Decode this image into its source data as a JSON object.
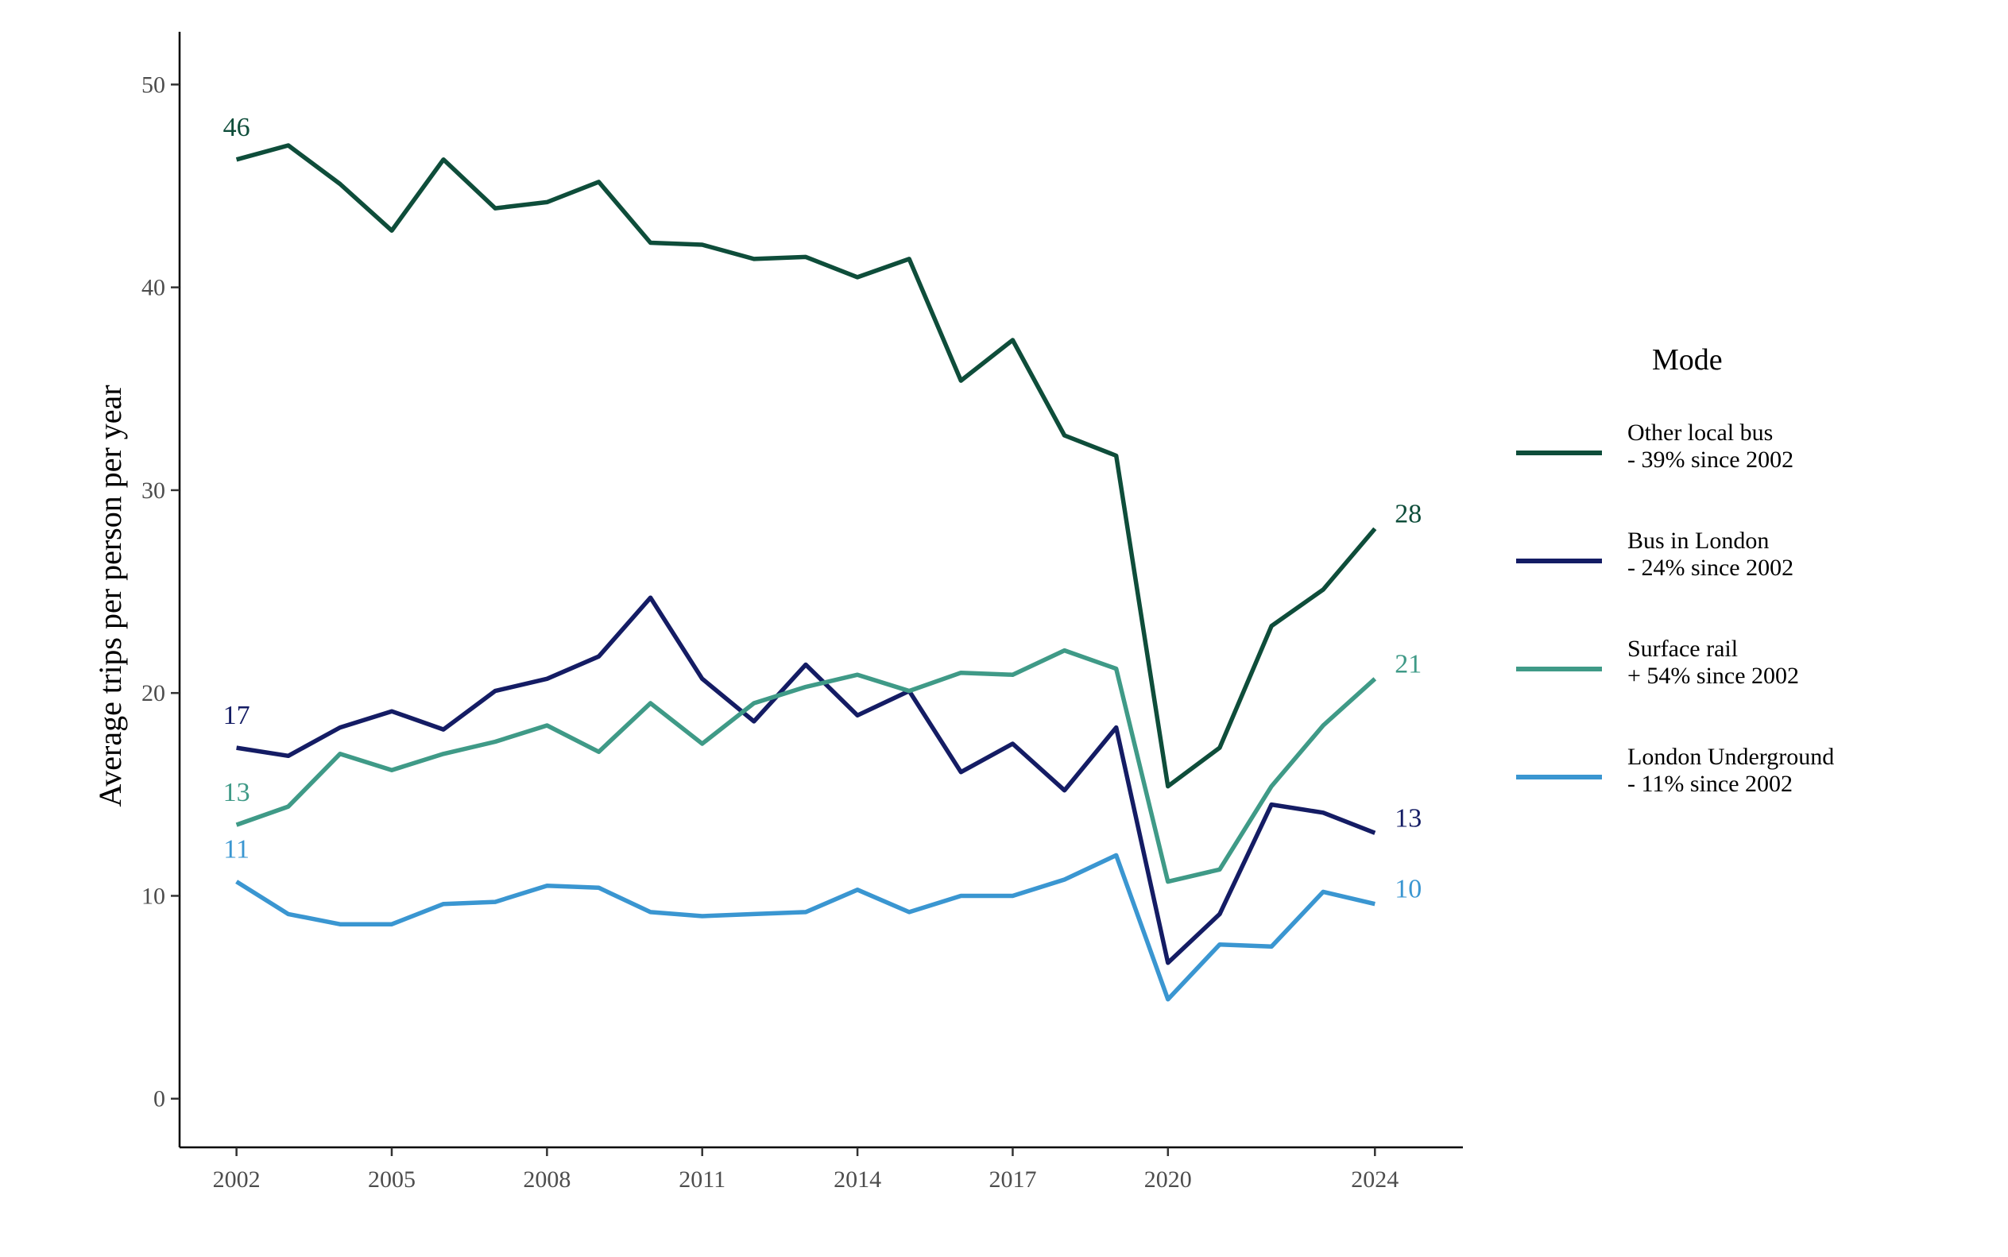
{
  "chart_data": {
    "type": "line",
    "xlabel": "",
    "ylabel": "Average trips per person per year",
    "xlim": [
      2000.9,
      2025.7
    ],
    "ylim": [
      -2.4,
      52.6
    ],
    "x_ticks": [
      "2002",
      "2005",
      "2008",
      "2011",
      "2014",
      "2017",
      "2020",
      "2024"
    ],
    "y_ticks": [
      "0",
      "10",
      "20",
      "30",
      "40",
      "50"
    ],
    "grid": false,
    "legend": {
      "title": "Mode",
      "placement": "right"
    },
    "x": [
      2002,
      2003,
      2004,
      2005,
      2006,
      2007,
      2008,
      2009,
      2010,
      2011,
      2012,
      2013,
      2014,
      2015,
      2016,
      2017,
      2018,
      2019,
      2020,
      2021,
      2022,
      2023,
      2024
    ],
    "series": [
      {
        "name": "Other local bus",
        "legend_line1": "Other local bus",
        "legend_line2": "- 39% since 2002",
        "color": "#0e4d3a",
        "values": [
          46.3,
          47.0,
          45.1,
          42.8,
          46.3,
          43.9,
          44.2,
          45.2,
          42.2,
          42.1,
          41.4,
          41.5,
          40.5,
          41.4,
          35.4,
          37.4,
          32.7,
          31.7,
          15.4,
          17.3,
          23.3,
          25.1,
          28.1
        ],
        "start_label": "46",
        "end_label": "28"
      },
      {
        "name": "Bus in London",
        "legend_line1": "Bus in London",
        "legend_line2": "- 24% since 2002",
        "color": "#141c64",
        "values": [
          17.3,
          16.9,
          18.3,
          19.1,
          18.2,
          20.1,
          20.7,
          21.8,
          24.7,
          20.7,
          18.6,
          21.4,
          18.9,
          20.1,
          16.1,
          17.5,
          15.2,
          18.3,
          6.7,
          9.1,
          14.5,
          14.1,
          13.1
        ],
        "start_label": "17",
        "end_label": "13"
      },
      {
        "name": "Surface rail",
        "legend_line1": "Surface rail",
        "legend_line2": "+ 54% since 2002",
        "color": "#3f9a87",
        "values": [
          13.5,
          14.4,
          17.0,
          16.2,
          17.0,
          17.6,
          18.4,
          17.1,
          19.5,
          17.5,
          19.5,
          20.3,
          20.9,
          20.1,
          21.0,
          20.9,
          22.1,
          21.2,
          10.7,
          11.3,
          15.4,
          18.4,
          20.7
        ],
        "start_label": "13",
        "end_label": "21"
      },
      {
        "name": "London Underground",
        "legend_line1": "London Underground",
        "legend_line2": "- 11% since 2002",
        "color": "#3a96d1",
        "values": [
          10.7,
          9.1,
          8.6,
          8.6,
          9.6,
          9.7,
          10.5,
          10.4,
          9.2,
          9.0,
          9.1,
          9.2,
          10.3,
          9.2,
          10.0,
          10.0,
          10.8,
          12.0,
          4.9,
          7.6,
          7.5,
          10.2,
          9.6
        ],
        "start_label": "11",
        "end_label": "10"
      }
    ]
  }
}
